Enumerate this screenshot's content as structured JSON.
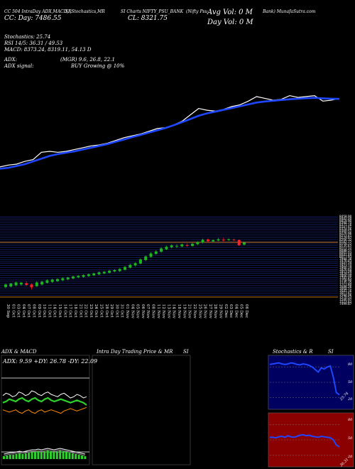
{
  "header": {
    "line1_a": "CC 504 IntraDay ADX,MACD,R",
    "line1_b": "SI,Stochastics,MR",
    "line1_c": "SI Charts NIFTY_PSU_BANK",
    "line1_d": "(Nifty Psu",
    "line1_e": "Bank) MunafaSutra.com",
    "left_value": "CC: Day: 7486.55",
    "center_value": "CL: 8321.75",
    "avg_vol": "Avg Vol: 0   M",
    "day_vol": "Day Vol: 0   M"
  },
  "indicators": {
    "stoch": "Stochastics: 25.74",
    "rsi": "RSI 14/5: 36.31 / 49.53",
    "macd": "MACD: 8373.24, 8319.11, 54.13 D",
    "adx": "ADX:",
    "mgr": "(MGR) 9.6, 26.8, 22.1",
    "adx_signal": "ADX signal:",
    "signal": "BUY Growing @ 10%"
  },
  "panels": {
    "adx_macd_title": "ADX & MACD",
    "adx_values": "ADX: 9.59  +DY: 26.78  -DY: 22.09",
    "intraday_title": "Intra Day Trading Price & MR",
    "intraday_title_b": "SI",
    "stoch_title": "Stochastics & R",
    "stoch_title_b": "SI",
    "stoch_levels": [
      "80",
      "50",
      "20"
    ],
    "stoch_last": "25.74",
    "rsi_levels": [
      "80",
      "50",
      "20"
    ],
    "rsi_last": "36.31"
  },
  "colors": {
    "background": "#000000",
    "price_line": "#ffffff",
    "ma_line": "#1e46ff",
    "up_candle": "#1fb51f",
    "down_candle": "#ff2020",
    "grid_blue": "#2233aa",
    "orange_ref": "#ff8c00",
    "stoch_bg": "#000060",
    "rsi_bg": "#8b0000"
  },
  "chart_data": [
    {
      "type": "line",
      "name": "price-overview",
      "series": [
        {
          "values": [
            8000,
            8010,
            8015,
            8030,
            8040,
            8080,
            8085,
            8080,
            8085,
            8095,
            8105,
            8115,
            8120,
            8130,
            8145,
            8160,
            8170,
            8180,
            8195,
            8210,
            8215,
            8230,
            8250,
            8285,
            8320,
            8310,
            8305,
            8315,
            8330,
            8340,
            8360,
            8385,
            8375,
            8365,
            8370,
            8390,
            8380,
            8385,
            8390,
            8360,
            8365,
            8375
          ]
        },
        {
          "values": [
            7990,
            7995,
            8005,
            8015,
            8030,
            8045,
            8060,
            8070,
            8078,
            8085,
            8095,
            8105,
            8115,
            8125,
            8138,
            8150,
            8163,
            8175,
            8188,
            8200,
            8213,
            8228,
            8245,
            8262,
            8280,
            8293,
            8302,
            8312,
            8322,
            8332,
            8342,
            8352,
            8358,
            8362,
            8366,
            8370,
            8373,
            8376,
            8378,
            8375,
            8373,
            8372
          ]
        }
      ]
    },
    {
      "type": "candlestick",
      "name": "daily-candles",
      "categories": [
        "30 Sep",
        "01 Oct",
        "03 Oct",
        "04 Oct",
        "07 Oct",
        "08 Oct",
        "09 Oct",
        "10 Oct",
        "11 Oct",
        "14 Oct",
        "15 Oct",
        "16 Oct",
        "17 Oct",
        "18 Oct",
        "21 Oct",
        "22 Oct",
        "23 Oct",
        "24 Oct",
        "25 Oct",
        "28 Oct",
        "29 Oct",
        "30 Oct",
        "31 Oct",
        "01 Nov",
        "04 Nov",
        "05 Nov",
        "06 Nov",
        "07 Nov",
        "08 Nov",
        "11 Nov",
        "12 Nov",
        "13 Nov",
        "14 Nov",
        "18 Nov",
        "19 Nov",
        "21 Nov",
        "22 Nov",
        "25 Nov",
        "26 Nov",
        "27 Nov",
        "28 Nov",
        "29 Nov",
        "02 Dec",
        "03 Dec",
        "04 Dec",
        "05 Dec",
        "06 Dec"
      ],
      "price_labels": [
        "8458.90",
        "8442.00",
        "8418.90",
        "8394.70",
        "8371.16",
        "8347.61",
        "8324.06",
        "8300.51",
        "8276.96",
        "8253.41",
        "8229.87",
        "8206.32",
        "8182.77",
        "8159.22",
        "8135.67",
        "8112.12",
        "8088.57",
        "8065.03",
        "8041.48",
        "8017.93",
        "7994.38",
        "7970.83",
        "7947.29",
        "7923.74",
        "7900.19",
        "7876.64",
        "7853.09",
        "7829.54",
        "7806.00",
        "7782.45",
        "7758.90",
        "7735.35",
        "7711.80",
        "7688.26",
        "7664.71",
        "7641.16",
        "7617.61",
        "7594.06",
        "7570.52",
        "7546.97",
        "7523.42",
        "7499.87"
      ],
      "candles": [
        {
          "o": 7620,
          "c": 7650,
          "h": 7660,
          "l": 7605
        },
        {
          "o": 7625,
          "c": 7660,
          "h": 7668,
          "l": 7615
        },
        {
          "o": 7640,
          "c": 7675,
          "h": 7683,
          "l": 7630
        },
        {
          "o": 7650,
          "c": 7672,
          "h": 7680,
          "l": 7635
        },
        {
          "o": 7665,
          "c": 7645,
          "h": 7690,
          "l": 7628
        },
        {
          "o": 7650,
          "c": 7615,
          "h": 7660,
          "l": 7590
        },
        {
          "o": 7630,
          "c": 7675,
          "h": 7690,
          "l": 7620
        },
        {
          "o": 7650,
          "c": 7682,
          "h": 7695,
          "l": 7640
        },
        {
          "o": 7670,
          "c": 7700,
          "h": 7712,
          "l": 7660
        },
        {
          "o": 7680,
          "c": 7708,
          "h": 7718,
          "l": 7670
        },
        {
          "o": 7690,
          "c": 7715,
          "h": 7725,
          "l": 7680
        },
        {
          "o": 7700,
          "c": 7725,
          "h": 7735,
          "l": 7690
        },
        {
          "o": 7710,
          "c": 7732,
          "h": 7742,
          "l": 7700
        },
        {
          "o": 7722,
          "c": 7745,
          "h": 7755,
          "l": 7712
        },
        {
          "o": 7735,
          "c": 7752,
          "h": 7762,
          "l": 7725
        },
        {
          "o": 7740,
          "c": 7762,
          "h": 7772,
          "l": 7730
        },
        {
          "o": 7750,
          "c": 7772,
          "h": 7782,
          "l": 7740
        },
        {
          "o": 7760,
          "c": 7782,
          "h": 7792,
          "l": 7750
        },
        {
          "o": 7770,
          "c": 7795,
          "h": 7805,
          "l": 7760
        },
        {
          "o": 7782,
          "c": 7800,
          "h": 7812,
          "l": 7772
        },
        {
          "o": 7790,
          "c": 7815,
          "h": 7825,
          "l": 7780
        },
        {
          "o": 7805,
          "c": 7822,
          "h": 7832,
          "l": 7795
        },
        {
          "o": 7810,
          "c": 7835,
          "h": 7845,
          "l": 7800
        },
        {
          "o": 7825,
          "c": 7860,
          "h": 7870,
          "l": 7815
        },
        {
          "o": 7850,
          "c": 7885,
          "h": 7895,
          "l": 7840
        },
        {
          "o": 7880,
          "c": 7905,
          "h": 7915,
          "l": 7865
        },
        {
          "o": 7900,
          "c": 7950,
          "h": 7962,
          "l": 7890
        },
        {
          "o": 7940,
          "c": 7985,
          "h": 7998,
          "l": 7930
        },
        {
          "o": 7980,
          "c": 8020,
          "h": 8035,
          "l": 7970
        },
        {
          "o": 8015,
          "c": 8045,
          "h": 8060,
          "l": 8005
        },
        {
          "o": 8040,
          "c": 8080,
          "h": 8095,
          "l": 8030
        },
        {
          "o": 8070,
          "c": 8100,
          "h": 8115,
          "l": 8060
        },
        {
          "o": 8095,
          "c": 8118,
          "h": 8130,
          "l": 8082
        },
        {
          "o": 8110,
          "c": 8112,
          "h": 8130,
          "l": 8085
        },
        {
          "o": 8105,
          "c": 8128,
          "h": 8138,
          "l": 8095
        },
        {
          "o": 8120,
          "c": 8115,
          "h": 8140,
          "l": 8098
        },
        {
          "o": 8110,
          "c": 8135,
          "h": 8148,
          "l": 8100
        },
        {
          "o": 8130,
          "c": 8155,
          "h": 8168,
          "l": 8120
        },
        {
          "o": 8150,
          "c": 8185,
          "h": 8198,
          "l": 8140
        },
        {
          "o": 8188,
          "c": 8168,
          "h": 8200,
          "l": 8155
        },
        {
          "o": 8165,
          "c": 8180,
          "h": 8190,
          "l": 8155
        },
        {
          "o": 8175,
          "c": 8190,
          "h": 8205,
          "l": 8165
        },
        {
          "o": 8185,
          "c": 8175,
          "h": 8208,
          "l": 8165
        },
        {
          "o": 8180,
          "c": 8190,
          "h": 8200,
          "l": 8170
        },
        {
          "o": 8185,
          "c": 8180,
          "h": 8198,
          "l": 8172
        },
        {
          "o": 8180,
          "c": 8120,
          "h": 8188,
          "l": 8110
        },
        {
          "o": 8125,
          "c": 8150,
          "h": 8160,
          "l": 8118
        }
      ]
    },
    {
      "type": "line",
      "name": "adx-panel",
      "series": [
        {
          "values": [
            30,
            32,
            31,
            29,
            30,
            33,
            32,
            30,
            31,
            34,
            33,
            31,
            30,
            32,
            33,
            31,
            30,
            29,
            31,
            32,
            30,
            28,
            29,
            31,
            30,
            28,
            29
          ]
        },
        {
          "values": [
            24,
            25,
            27,
            26,
            25,
            27,
            28,
            26,
            25,
            27,
            28,
            26,
            25,
            27,
            28,
            26,
            25,
            26,
            27,
            26,
            25,
            24,
            25,
            26,
            25,
            24,
            22
          ]
        },
        {
          "values": [
            18,
            17,
            16,
            17,
            18,
            16,
            15,
            17,
            18,
            16,
            15,
            17,
            18,
            16,
            17,
            18,
            17,
            16,
            15,
            17,
            18,
            19,
            18,
            17,
            18,
            19,
            20
          ]
        }
      ]
    },
    {
      "type": "line",
      "name": "stochastics-panel",
      "series": [
        {
          "values": [
            85,
            86,
            87,
            88,
            86,
            85,
            86,
            88,
            87,
            85,
            84,
            86,
            85,
            83,
            80,
            75,
            70,
            78,
            76,
            80,
            82,
            60,
            30,
            25.74
          ]
        }
      ]
    },
    {
      "type": "line",
      "name": "rsi-panel",
      "series": [
        {
          "values": [
            55,
            55,
            54,
            56,
            57,
            55,
            58,
            56,
            55,
            57,
            59,
            60,
            58,
            59,
            57,
            56,
            55,
            57,
            56,
            55,
            54,
            50,
            40,
            36.31
          ]
        }
      ]
    }
  ]
}
